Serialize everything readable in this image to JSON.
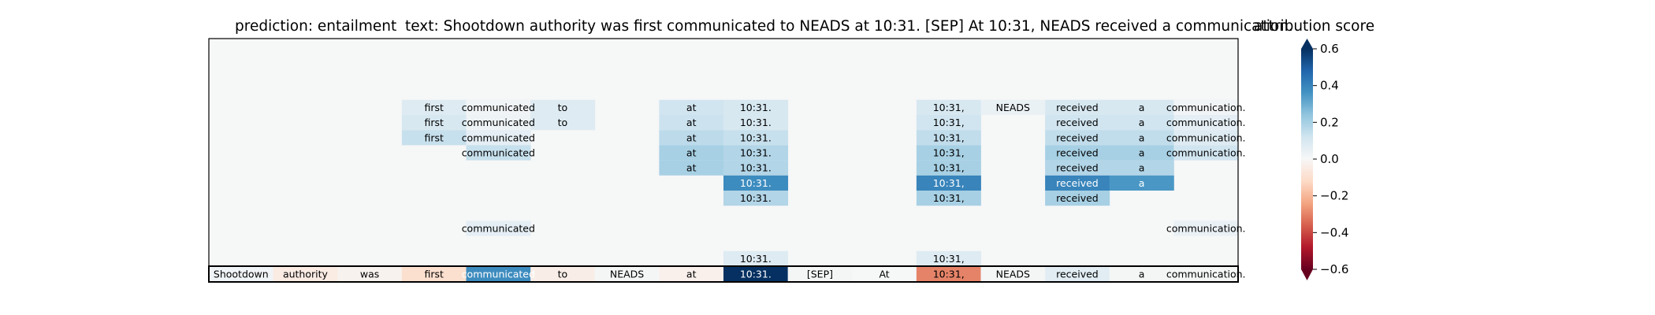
{
  "chart_data": {
    "type": "heatmap",
    "title_left": "prediction:  entailment",
    "title_main": "text:  Shootdown authority was first communicated to NEADS at 10:31. [SEP] At 10:31, NEADS received a communication.",
    "colorbar_title": "attribution score",
    "colorbar_ticks": [
      "0.6",
      "0.4",
      "0.2",
      "0.0",
      "−0.2",
      "−0.4",
      "−0.6"
    ],
    "colorbar_range": [
      -0.6,
      0.6
    ],
    "colormap": "RdBu",
    "tokens": [
      "Shootdown",
      "authority",
      "was",
      "first",
      "communicated",
      "to",
      "NEADS",
      "at",
      "10:31.",
      "[SEP]",
      "At",
      "10:31,",
      "NEADS",
      "received",
      "a",
      "communication."
    ],
    "bottom_row_labels": [
      "Shootdown",
      "authority",
      "was",
      "first",
      "communicated",
      "to",
      "NEADS",
      "at",
      "10:31.",
      "[SEP]",
      "At",
      "10:31,",
      "NEADS",
      "received",
      "a",
      "communication."
    ],
    "bottom_row_scores": [
      0.02,
      -0.05,
      -0.02,
      -0.1,
      0.38,
      -0.04,
      0.01,
      -0.03,
      0.62,
      0.01,
      0.0,
      -0.3,
      0.01,
      0.07,
      0.01,
      0.01
    ],
    "levels": [
      {
        "scores": [
          0,
          0,
          0,
          0.08,
          0.02,
          0.08,
          0,
          0.12,
          0.1,
          0,
          0,
          0.1,
          0.04,
          0.1,
          0.1,
          0.02
        ],
        "labels": [
          null,
          null,
          null,
          "first",
          "communicated",
          "to",
          null,
          "at",
          "10:31.",
          null,
          null,
          "10:31,",
          "NEADS",
          "received",
          "a",
          "communication."
        ]
      },
      {
        "scores": [
          0,
          0,
          0,
          0.1,
          0.03,
          0.08,
          0,
          0.13,
          0.1,
          0,
          0,
          0.12,
          0,
          0.12,
          0.12,
          0.06
        ],
        "labels": [
          null,
          null,
          null,
          "first",
          "communicated",
          "to",
          null,
          "at",
          "10:31.",
          null,
          null,
          "10:31,",
          null,
          "received",
          "a",
          "communication."
        ]
      },
      {
        "scores": [
          0,
          0,
          0,
          0.14,
          0.06,
          0,
          0,
          0.16,
          0.14,
          0,
          0,
          0.15,
          0,
          0.15,
          0.15,
          0.08
        ],
        "labels": [
          null,
          null,
          null,
          "first",
          "communicated",
          null,
          null,
          "at",
          "10:31.",
          null,
          null,
          "10:31,",
          null,
          "received",
          "a",
          "communication."
        ]
      },
      {
        "scores": [
          0,
          0,
          0,
          0,
          0.14,
          0,
          0,
          0.2,
          0.18,
          0,
          0,
          0.2,
          0,
          0.2,
          0.2,
          0.12
        ],
        "labels": [
          null,
          null,
          null,
          null,
          "communicated",
          null,
          null,
          "at",
          "10:31.",
          null,
          null,
          "10:31,",
          null,
          "received",
          "a",
          "communication."
        ]
      },
      {
        "scores": [
          0,
          0,
          0,
          0,
          0,
          0,
          0,
          0.2,
          0.18,
          0,
          0,
          0.2,
          0,
          0.18,
          0.18,
          0
        ],
        "labels": [
          null,
          null,
          null,
          null,
          null,
          null,
          null,
          "at",
          "10:31.",
          null,
          null,
          "10:31,",
          null,
          "received",
          "a",
          null
        ]
      },
      {
        "scores": [
          0,
          0,
          0,
          0,
          0,
          0,
          0,
          0,
          0.38,
          0,
          0,
          0.4,
          0,
          0.4,
          0.35,
          0
        ],
        "labels": [
          null,
          null,
          null,
          null,
          null,
          null,
          null,
          null,
          "10:31.",
          null,
          null,
          "10:31,",
          null,
          "received",
          "a",
          null
        ]
      },
      {
        "scores": [
          0,
          0,
          0,
          0,
          0,
          0,
          0,
          0,
          0.18,
          0,
          0,
          0.2,
          0,
          0.2,
          0,
          0
        ],
        "labels": [
          null,
          null,
          null,
          null,
          null,
          null,
          null,
          null,
          "10:31.",
          null,
          null,
          "10:31,",
          null,
          "received",
          null,
          null
        ]
      },
      {
        "scores": [
          0,
          0,
          0,
          0,
          0,
          0,
          0,
          0,
          0,
          0,
          0,
          0,
          0,
          0,
          0,
          0
        ],
        "labels": [
          null,
          null,
          null,
          null,
          null,
          null,
          null,
          null,
          null,
          null,
          null,
          null,
          null,
          null,
          null,
          null
        ]
      },
      {
        "scores": [
          0,
          0,
          0,
          0,
          0.06,
          0,
          0,
          0,
          0,
          0,
          0,
          0,
          0,
          0,
          0,
          0.04
        ],
        "labels": [
          null,
          null,
          null,
          null,
          "communicated",
          null,
          null,
          null,
          null,
          null,
          null,
          null,
          null,
          null,
          null,
          "communication."
        ]
      },
      {
        "scores": [
          0,
          0,
          0,
          0,
          0,
          0,
          0,
          0,
          0,
          0,
          0,
          0,
          0,
          0,
          0,
          0
        ],
        "labels": [
          null,
          null,
          null,
          null,
          null,
          null,
          null,
          null,
          null,
          null,
          null,
          null,
          null,
          null,
          null,
          null
        ]
      },
      {
        "scores": [
          0,
          0,
          0,
          0,
          0,
          0,
          0,
          0,
          0.08,
          0,
          0,
          0.08,
          0,
          0,
          0,
          0
        ],
        "labels": [
          null,
          null,
          null,
          null,
          null,
          null,
          null,
          null,
          "10:31.",
          null,
          null,
          "10:31,",
          null,
          null,
          null,
          null
        ]
      }
    ]
  }
}
